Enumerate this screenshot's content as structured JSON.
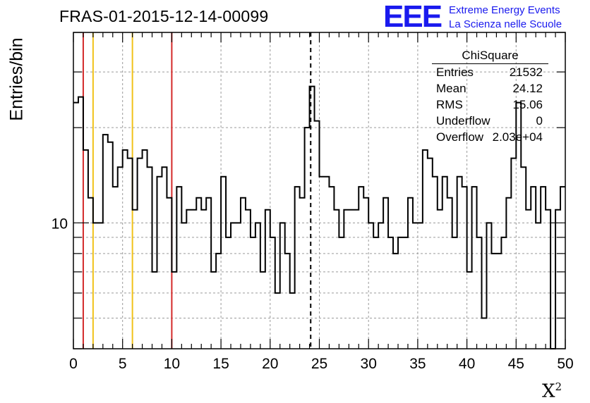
{
  "title": "FRAS-01-2015-12-14-00099",
  "logo": {
    "acronym": "EEE",
    "line1": "Extreme Energy Events",
    "line2": "La Scienza nelle Scuole",
    "color": "#1a1aee"
  },
  "stats": {
    "header": "ChiSquare",
    "rows": [
      {
        "key": "Entries",
        "value": "21532"
      },
      {
        "key": "Mean",
        "value": "24.12"
      },
      {
        "key": "RMS",
        "value": "15.06"
      },
      {
        "key": "Underflow",
        "value": "0"
      },
      {
        "key": "Overflow",
        "value": "2.03e+04"
      }
    ]
  },
  "chart_data": {
    "type": "histogram-step",
    "title": "FRAS-01-2015-12-14-00099",
    "xlabel": "X",
    "xlabel_superscript": "2",
    "ylabel": "Entries/bin",
    "log_y": true,
    "grid": true,
    "xlim": [
      0,
      50
    ],
    "ylim": [
      4,
      40
    ],
    "x_ticks": [
      0,
      5,
      10,
      15,
      20,
      25,
      30,
      35,
      40,
      45,
      50
    ],
    "y_tick_labels": [
      {
        "value": 10,
        "label": "10"
      }
    ],
    "bin_width": 0.5,
    "values": [
      24,
      25,
      17,
      12,
      10,
      10,
      19,
      18,
      13,
      15,
      17,
      16,
      11,
      16,
      17,
      15,
      7,
      14,
      15,
      12,
      7,
      13,
      10,
      11,
      11,
      12,
      11,
      12,
      7,
      8,
      14,
      9,
      10,
      10,
      12,
      11,
      9,
      10,
      7,
      11,
      9,
      6,
      10,
      8,
      6,
      13,
      12,
      20,
      27,
      21,
      14,
      14,
      13,
      11,
      9,
      11,
      11,
      11,
      13,
      12,
      10,
      9,
      10,
      12,
      9,
      8,
      9,
      9,
      12,
      10,
      10,
      17,
      16,
      14,
      11,
      14,
      12,
      9,
      14,
      13,
      7,
      13,
      9,
      5,
      10,
      8,
      8,
      9,
      12,
      16,
      24,
      15,
      11,
      13,
      10,
      13,
      11,
      4,
      11,
      13
    ],
    "vertical_lines": [
      {
        "x": 1,
        "color": "#d42a2a",
        "style": "solid"
      },
      {
        "x": 2,
        "color": "#f0c21a",
        "style": "solid"
      },
      {
        "x": 6,
        "color": "#f0c21a",
        "style": "solid"
      },
      {
        "x": 10,
        "color": "#d42a2a",
        "style": "solid"
      },
      {
        "x": 24.12,
        "color": "#000000",
        "style": "dashed"
      }
    ]
  }
}
